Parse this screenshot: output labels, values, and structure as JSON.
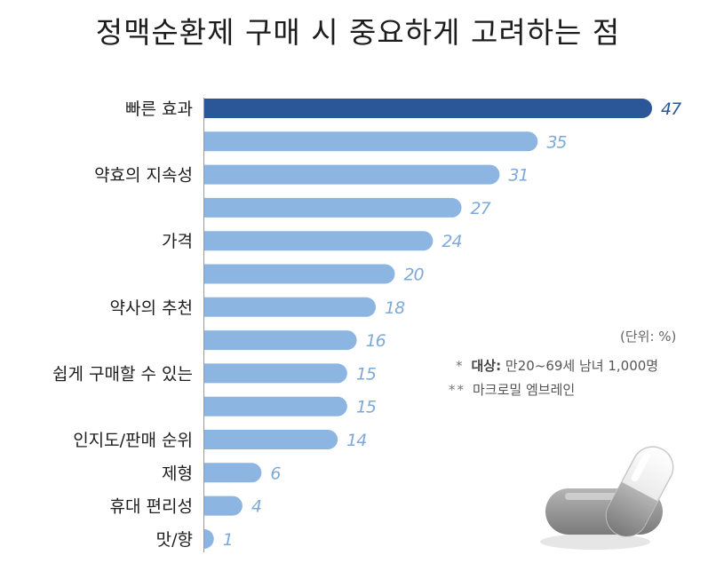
{
  "title": "정맥순환제 구매 시 중요하게 고려하는 점",
  "notes": {
    "unit": "(단위: %)",
    "target_mark": "*",
    "target_label": "대상:",
    "target_value": "만20~69세 남녀 1,000명",
    "sample_mark": "**",
    "sample_value": "마크로밀 엠브레인"
  },
  "colors": {
    "highlight_bar": "#2b5799",
    "bar": "#8db5e2",
    "highlight_value": "#2b5799",
    "value": "#7fa9d9"
  },
  "chart_data": {
    "type": "bar",
    "orientation": "horizontal",
    "categories": [
      "빠른 효과",
      "",
      "약효의 지속성",
      "",
      "가격",
      "",
      "약사의 추천",
      "",
      "쉽게 구매할 수 있는",
      "",
      "인지도/판매 순위",
      "제형",
      "휴대 편리성",
      "맛/향"
    ],
    "values": [
      47,
      35,
      31,
      27,
      24,
      20,
      18,
      16,
      15,
      15,
      14,
      6,
      4,
      1
    ],
    "highlight_index": 0,
    "xlim": [
      0,
      47
    ],
    "title": "정맥순환제 구매 시 중요하게 고려하는 점",
    "xlabel": "",
    "ylabel": "",
    "grid": false,
    "legend": "none"
  }
}
